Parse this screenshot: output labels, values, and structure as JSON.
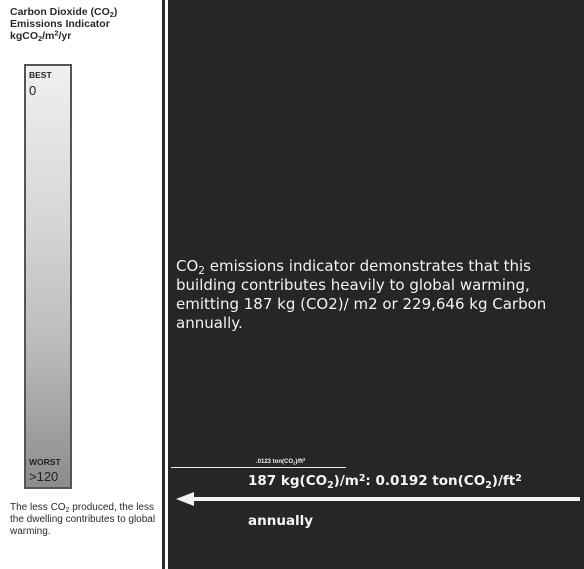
{
  "indicator": {
    "title_a": "Carbon Dioxide (CO",
    "title_a_sub": "2",
    "title_a_end": ")",
    "title_b": "Emissions Indicator",
    "unit_a": "kgCO",
    "unit_sub": "2",
    "unit_b": "/m",
    "unit_sup": "2",
    "unit_c": "/yr"
  },
  "scale": {
    "best_label": "BEST",
    "best_value": "0",
    "worst_label": "WORST",
    "worst_value": ">120",
    "top_color": "#f0f0f0",
    "bottom_color": "#8c8c8c"
  },
  "footnote": {
    "a": "The less CO",
    "sub": "2",
    "b": " produced, the less the dwelling contributes to global warming."
  },
  "description": {
    "a": "CO",
    "sub": "2",
    "b": " emissions indicator demonstrates that this building contributes heavily to global warming, emitting 187 kg (CO2)/ m2 or 229,646 kg Carbon annually."
  },
  "conversion": {
    "small_a": ".0123 ton(CO",
    "small_sub": "2",
    "small_b": ")/ft",
    "small_sup": "2",
    "main_a": "187 kg(CO",
    "main_sub1": "2",
    "main_b": ")/m",
    "main_sup1": "2",
    "main_c": ": 0.0192 ton(CO",
    "main_sub2": "2",
    "main_d": ")/ft",
    "main_sup2": "2",
    "annual": "annually"
  },
  "colors": {
    "dark_panel": "#262626",
    "text_light": "#f2f2f2"
  }
}
